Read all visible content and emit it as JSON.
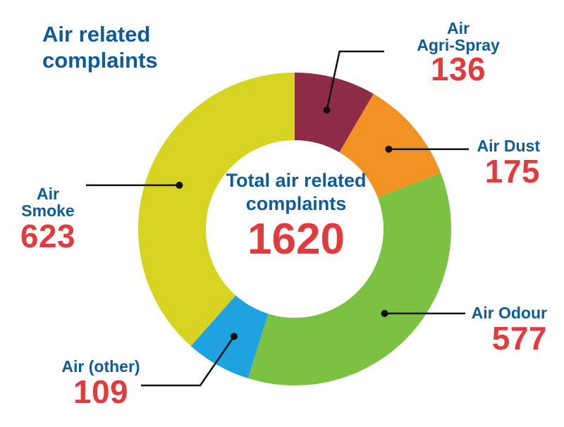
{
  "title": "Air related complaints",
  "center": {
    "label": "Total air related complaints",
    "total": "1620"
  },
  "chart_data": {
    "type": "pie",
    "variant": "donut",
    "title": "Air related complaints",
    "total": 1620,
    "categories": [
      "Air Agri-Spray",
      "Air Dust",
      "Air Odour",
      "Air (other)",
      "Air Smoke"
    ],
    "values": [
      136,
      175,
      577,
      109,
      623
    ],
    "colors": [
      "#8e2c48",
      "#f19223",
      "#7cc242",
      "#1ea3e0",
      "#d7d321"
    ],
    "labels": [
      {
        "name": "Air\nAgri-Spray",
        "value": "136"
      },
      {
        "name": "Air Dust",
        "value": "175"
      },
      {
        "name": "Air Odour",
        "value": "577"
      },
      {
        "name": "Air (other)",
        "value": "109"
      },
      {
        "name": "Air\nSmoke",
        "value": "623"
      }
    ]
  }
}
